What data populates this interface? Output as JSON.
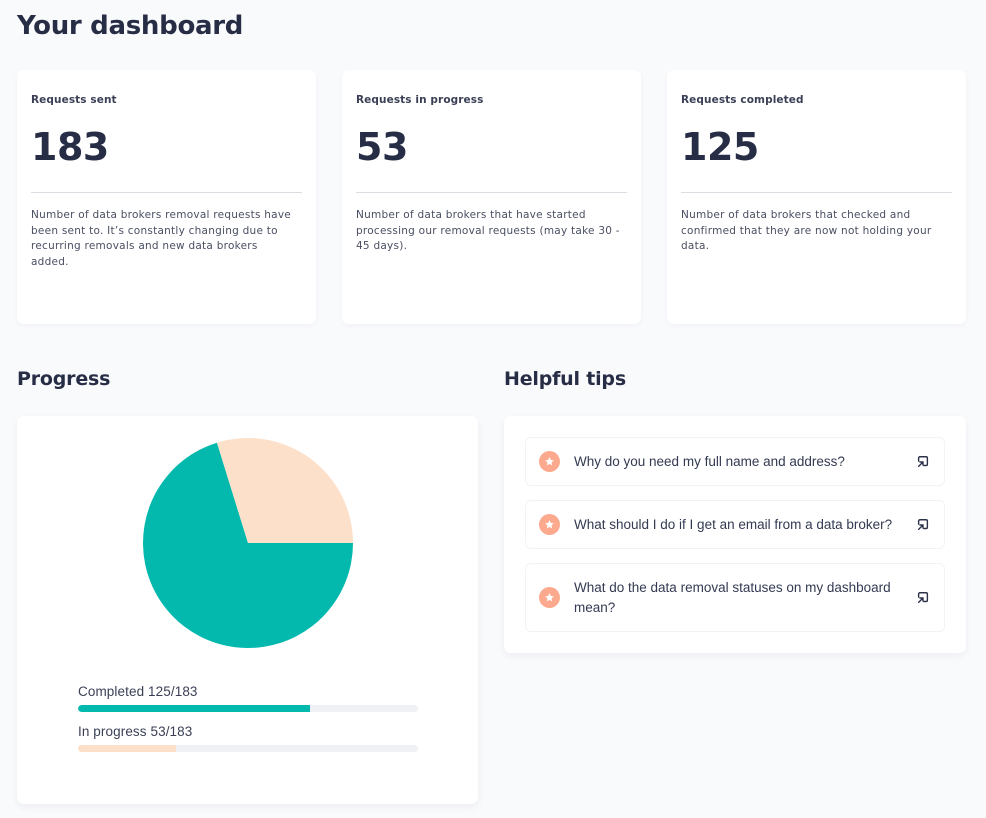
{
  "page": {
    "title": "Your dashboard"
  },
  "stats": [
    {
      "label": "Requests sent",
      "value": "183",
      "description": "Number of data brokers removal requests have been sent to. It’s constantly changing due to recurring removals and new data brokers added."
    },
    {
      "label": "Requests in progress",
      "value": "53",
      "description": "Number of data brokers that have started processing our removal requests (may take 30 - 45 days)."
    },
    {
      "label": "Requests completed",
      "value": "125",
      "description": "Number of data brokers that checked and confirmed that they are now not holding your data."
    }
  ],
  "progress": {
    "title": "Progress",
    "bars": [
      {
        "label": "Completed 125/183",
        "value": 125,
        "total": 183,
        "color": "#03b9ad"
      },
      {
        "label": "In progress 53/183",
        "value": 53,
        "total": 183,
        "color": "#fde0ca"
      }
    ]
  },
  "tips": {
    "title": "Helpful tips",
    "icon": "star-icon",
    "link_icon": "external-link-icon",
    "items": [
      {
        "text": "Why do you need my full name and address?"
      },
      {
        "text": "What should I do if I get an email from a data broker?"
      },
      {
        "text": "What do the data removal statuses on my dashboard mean?"
      }
    ]
  },
  "colors": {
    "background": "#f9fafc",
    "card": "#ffffff",
    "text": "#272d45",
    "completed": "#03b9ad",
    "in_progress": "#fde0ca",
    "tip_icon": "#fca98e"
  },
  "chart_data": {
    "type": "pie",
    "title": "Progress",
    "categories": [
      "Completed",
      "In progress"
    ],
    "values": [
      125,
      53
    ],
    "total": 183,
    "colors": [
      "#03b9ad",
      "#fde0ca"
    ],
    "legend": "none"
  }
}
